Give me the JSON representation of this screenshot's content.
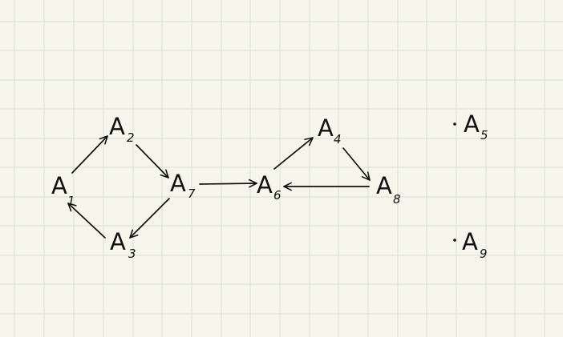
{
  "colors": {
    "paper": "#f6f6ec",
    "grid": "#d8ddd0",
    "ink": "#111111"
  },
  "nodes": [
    {
      "id": "A1",
      "letter": "A",
      "index": "1",
      "isolated": false
    },
    {
      "id": "A2",
      "letter": "A",
      "index": "2",
      "isolated": false
    },
    {
      "id": "A3",
      "letter": "A",
      "index": "3",
      "isolated": false
    },
    {
      "id": "A7",
      "letter": "A",
      "index": "7",
      "isolated": false
    },
    {
      "id": "A6",
      "letter": "A",
      "index": "6",
      "isolated": false
    },
    {
      "id": "A4",
      "letter": "A",
      "index": "4",
      "isolated": false
    },
    {
      "id": "A8",
      "letter": "A",
      "index": "8",
      "isolated": false
    },
    {
      "id": "A5",
      "letter": "A",
      "index": "5",
      "isolated": true
    },
    {
      "id": "A9",
      "letter": "A",
      "index": "9",
      "isolated": true
    }
  ],
  "edges": [
    {
      "from": "A1",
      "to": "A2"
    },
    {
      "from": "A2",
      "to": "A7"
    },
    {
      "from": "A7",
      "to": "A3"
    },
    {
      "from": "A3",
      "to": "A1"
    },
    {
      "from": "A7",
      "to": "A6"
    },
    {
      "from": "A6",
      "to": "A4"
    },
    {
      "from": "A4",
      "to": "A8"
    },
    {
      "from": "A8",
      "to": "A6"
    }
  ]
}
